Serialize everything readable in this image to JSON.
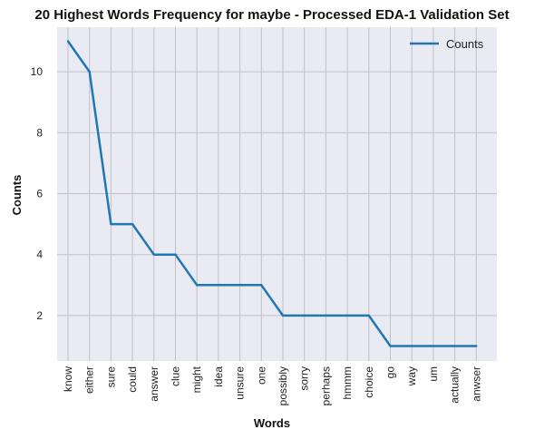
{
  "chart_data": {
    "type": "line",
    "title": "20 Highest Words Frequency for maybe - Processed EDA-1 Validation Set",
    "xlabel": "Words",
    "ylabel": "Counts",
    "categories": [
      "know",
      "either",
      "sure",
      "could",
      "answer",
      "clue",
      "might",
      "idea",
      "unsure",
      "one",
      "possibly",
      "sorry",
      "perhaps",
      "hmmm",
      "choice",
      "go",
      "way",
      "um",
      "actually",
      "anwser"
    ],
    "series": [
      {
        "name": "Counts",
        "values": [
          11,
          10,
          5,
          5,
          4,
          4,
          3,
          3,
          3,
          3,
          2,
          2,
          2,
          2,
          2,
          1,
          1,
          1,
          1,
          1
        ]
      }
    ],
    "yticks": [
      2,
      4,
      6,
      8,
      10
    ],
    "ylim": [
      0.5,
      11.5
    ],
    "grid": true,
    "legend_position": "top-right",
    "colors": {
      "line": "#1f77b4",
      "background": "#eaeaf2",
      "grid": "#c0c0c8"
    }
  }
}
